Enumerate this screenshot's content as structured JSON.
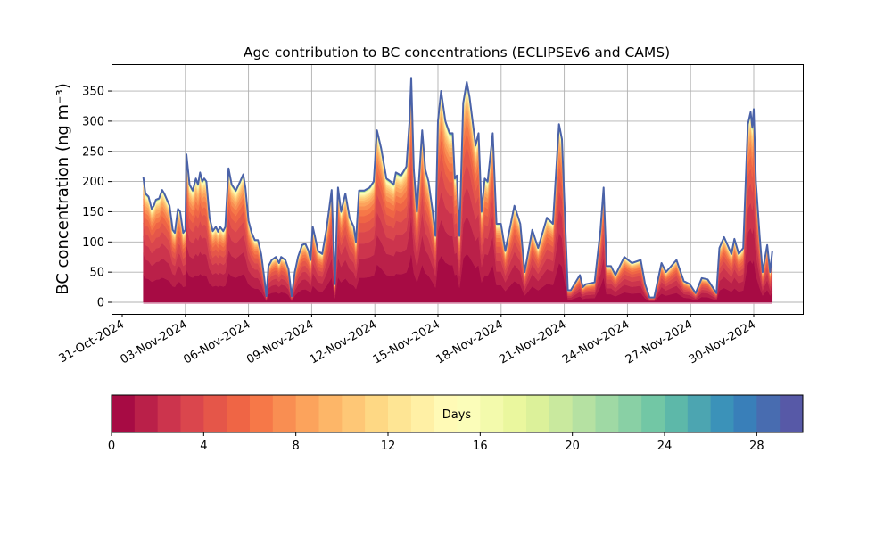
{
  "chart_data": {
    "type": "area",
    "title": "Age contribution to BC concentrations (ECLIPSEv6 and CAMS)",
    "ylabel": "BC concentration (ng m⁻³)",
    "xlabel": "",
    "ylim": [
      -20,
      390
    ],
    "yticks": [
      0,
      50,
      100,
      150,
      200,
      250,
      300,
      350
    ],
    "ytick_labels": [
      "0",
      "50",
      "100",
      "150",
      "200",
      "250",
      "300",
      "350"
    ],
    "x_unit": "days since 01-Nov-2024",
    "xlim": [
      -1.5,
      31.3
    ],
    "xticks": [
      -1,
      2,
      5,
      8,
      11,
      14,
      17,
      20,
      23,
      26,
      29
    ],
    "xtick_labels": [
      "31-Oct-2024",
      "03-Nov-2024",
      "06-Nov-2024",
      "09-Nov-2024",
      "12-Nov-2024",
      "15-Nov-2024",
      "18-Nov-2024",
      "21-Nov-2024",
      "24-Nov-2024",
      "27-Nov-2024",
      "30-Nov-2024"
    ],
    "grid": true,
    "total": {
      "x": [
        0,
        0.1,
        0.25,
        0.4,
        0.5,
        0.6,
        0.75,
        0.9,
        1.0,
        1.25,
        1.4,
        1.5,
        1.65,
        1.75,
        1.9,
        2.0,
        2.05,
        2.2,
        2.35,
        2.5,
        2.6,
        2.7,
        2.8,
        2.9,
        3.0,
        3.15,
        3.3,
        3.45,
        3.55,
        3.65,
        3.8,
        3.9,
        4.05,
        4.2,
        4.4,
        4.6,
        4.75,
        4.85,
        5.0,
        5.15,
        5.3,
        5.45,
        5.6,
        5.75,
        5.85,
        5.95,
        6.1,
        6.3,
        6.45,
        6.55,
        6.75,
        6.9,
        7.05,
        7.2,
        7.35,
        7.55,
        7.7,
        7.85,
        7.95,
        8.05,
        8.15,
        8.3,
        8.5,
        8.7,
        8.95,
        9.1,
        9.25,
        9.4,
        9.6,
        9.8,
        10.0,
        10.1,
        10.25,
        10.5,
        10.75,
        10.95,
        11.1,
        11.3,
        11.55,
        11.75,
        11.9,
        12.0,
        12.25,
        12.5,
        12.65,
        12.73,
        12.85,
        13.0,
        13.25,
        13.4,
        13.55,
        13.75,
        13.88,
        14.0,
        14.15,
        14.35,
        14.55,
        14.7,
        14.8,
        14.9,
        15.02,
        15.2,
        15.37,
        15.5,
        15.79,
        15.93,
        16.07,
        16.22,
        16.36,
        16.6,
        16.78,
        16.99,
        17.2,
        17.63,
        17.91,
        18.12,
        18.48,
        18.76,
        19.18,
        19.46,
        19.75,
        19.89,
        20.17,
        20.31,
        20.74,
        20.88,
        21.02,
        21.44,
        21.72,
        21.87,
        22.01,
        22.22,
        22.43,
        22.85,
        23.21,
        23.63,
        23.84,
        24.05,
        24.27,
        24.62,
        24.83,
        25.33,
        25.68,
        25.96,
        26.24,
        26.53,
        26.81,
        27.23,
        27.37,
        27.59,
        27.94,
        28.08,
        28.29,
        28.5,
        28.72,
        28.85,
        28.93,
        29.0,
        29.1,
        29.28,
        29.42,
        29.64,
        29.78,
        29.88
      ],
      "y": [
        208,
        180,
        175,
        155,
        160,
        170,
        172,
        186,
        180,
        160,
        120,
        115,
        155,
        150,
        115,
        120,
        245,
        195,
        185,
        205,
        195,
        215,
        200,
        205,
        200,
        140,
        118,
        125,
        117,
        125,
        118,
        125,
        222,
        195,
        185,
        200,
        212,
        190,
        135,
        115,
        103,
        103,
        80,
        40,
        10,
        60,
        70,
        75,
        65,
        75,
        70,
        55,
        10,
        50,
        75,
        95,
        97,
        85,
        70,
        125,
        110,
        85,
        80,
        120,
        186,
        30,
        190,
        150,
        180,
        140,
        125,
        100,
        185,
        185,
        190,
        200,
        285,
        255,
        205,
        200,
        195,
        215,
        210,
        225,
        300,
        372,
        220,
        150,
        285,
        220,
        200,
        150,
        110,
        300,
        350,
        300,
        280,
        280,
        205,
        210,
        110,
        330,
        365,
        340,
        260,
        280,
        150,
        205,
        200,
        280,
        130,
        130,
        85,
        160,
        130,
        50,
        120,
        90,
        140,
        130,
        295,
        270,
        20,
        20,
        45,
        25,
        30,
        33,
        120,
        190,
        60,
        60,
        45,
        75,
        65,
        70,
        30,
        8,
        8,
        65,
        50,
        70,
        35,
        30,
        15,
        40,
        38,
        15,
        90,
        108,
        80,
        105,
        80,
        90,
        295,
        315,
        290,
        320,
        200,
        110,
        50,
        95,
        50,
        85
      ]
    },
    "age_bin_fractions": [
      0.221,
      0.172,
      0.134,
      0.104,
      0.081,
      0.063,
      0.049,
      0.038,
      0.03,
      0.023,
      0.018,
      0.014,
      0.011,
      0.009,
      0.007,
      0.005,
      0.004,
      0.003,
      0.003,
      0.002,
      0.002,
      0.001,
      0.001,
      0.001,
      0.001,
      0.001,
      0.001,
      0.001,
      0.001,
      0.001
    ],
    "colorbar": {
      "label": "Days",
      "range": [
        0,
        30
      ],
      "n_bins": 30,
      "ticks": [
        0,
        4,
        8,
        12,
        16,
        20,
        24,
        28
      ],
      "tick_labels": [
        "0",
        "4",
        "8",
        "12",
        "16",
        "20",
        "24",
        "28"
      ],
      "colormap": [
        "#9e0142",
        "#d53e4f",
        "#f46d43",
        "#fdae61",
        "#fee08b",
        "#ffffbf",
        "#e6f598",
        "#abdda4",
        "#66c2a5",
        "#3288bd",
        "#5e4fa2"
      ]
    },
    "top_line_color": "#4a62a8"
  }
}
